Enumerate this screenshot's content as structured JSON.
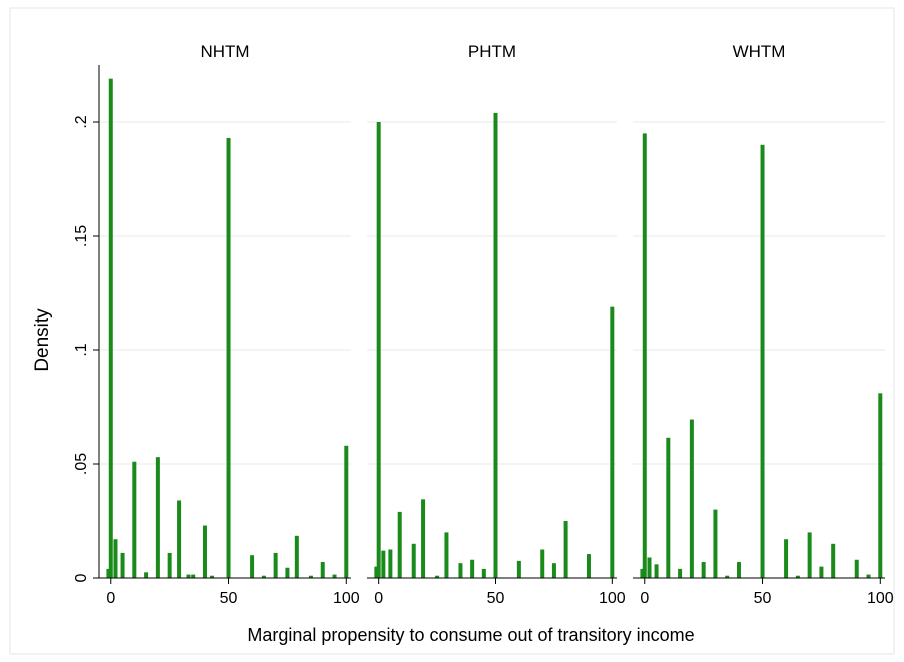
{
  "chart_data": {
    "type": "bar",
    "xlabel": "Marginal propensity to consume out of transitory income",
    "ylabel": "Density",
    "xlim": [
      -5,
      102
    ],
    "ylim": [
      0,
      0.225
    ],
    "x_ticks": [
      0,
      50,
      100
    ],
    "x_tick_labels": [
      "0",
      "50",
      "100"
    ],
    "y_ticks": [
      0,
      0.05,
      0.1,
      0.15,
      0.2
    ],
    "y_tick_labels": [
      "0",
      ".05",
      ".1",
      ".15",
      ".2"
    ],
    "grid": true,
    "bar_color": "#1a8a1a",
    "panels": [
      {
        "title": "NHTM",
        "x": [
          -1,
          0,
          2,
          5,
          10,
          15,
          20,
          25,
          29,
          33,
          35,
          40,
          43,
          50,
          60,
          65,
          70,
          75,
          79,
          85,
          90,
          95,
          100
        ],
        "values": [
          0.004,
          0.219,
          0.017,
          0.011,
          0.051,
          0.0025,
          0.053,
          0.011,
          0.034,
          0.0015,
          0.0015,
          0.023,
          0.001,
          0.193,
          0.01,
          0.001,
          0.011,
          0.0045,
          0.0185,
          0.001,
          0.007,
          0.0015,
          0.058
        ]
      },
      {
        "title": "PHTM",
        "x": [
          -1,
          0,
          2,
          5,
          9,
          15,
          19,
          25,
          29,
          35,
          40,
          45,
          50,
          60,
          70,
          75,
          80,
          90,
          100
        ],
        "values": [
          0.005,
          0.2,
          0.012,
          0.0125,
          0.029,
          0.015,
          0.0345,
          0.001,
          0.02,
          0.0065,
          0.008,
          0.004,
          0.204,
          0.0075,
          0.0125,
          0.0065,
          0.025,
          0.0105,
          0.119
        ]
      },
      {
        "title": "WHTM",
        "x": [
          -1,
          0,
          2,
          5,
          10,
          15,
          20,
          25,
          30,
          35,
          40,
          50,
          60,
          65,
          70,
          75,
          80,
          90,
          95,
          100
        ],
        "values": [
          0.004,
          0.195,
          0.009,
          0.006,
          0.0615,
          0.004,
          0.0695,
          0.007,
          0.03,
          0.001,
          0.007,
          0.19,
          0.017,
          0.001,
          0.02,
          0.005,
          0.015,
          0.008,
          0.0015,
          0.081
        ]
      }
    ]
  }
}
